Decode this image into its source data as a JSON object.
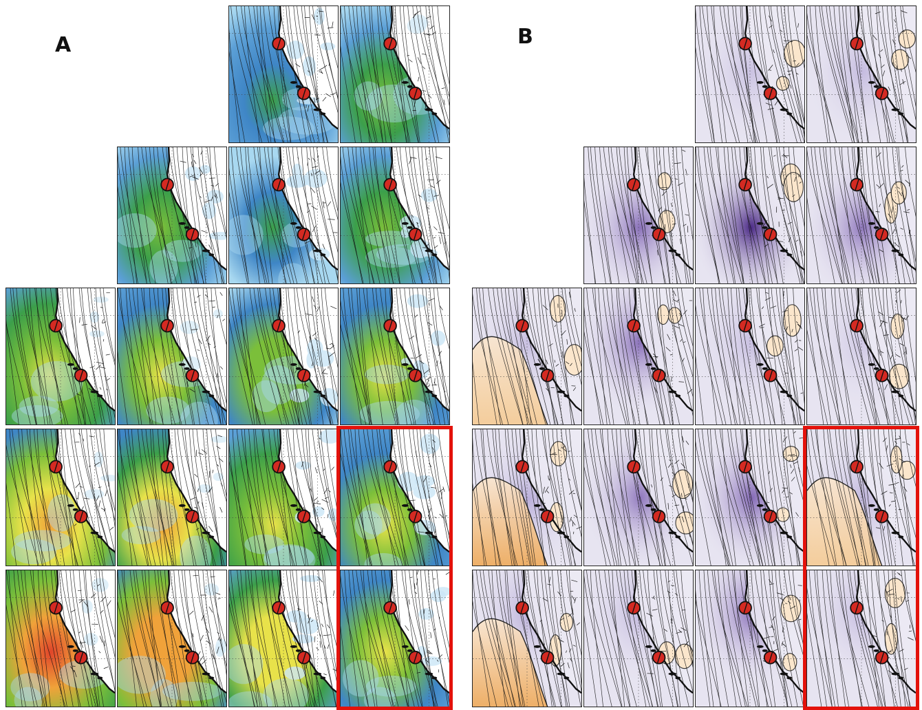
{
  "panels": [
    {
      "label": "A",
      "color_scheme": "wind-speed-blue-green-yellow-red",
      "colors": [
        "#a8d8f0",
        "#5b9fd6",
        "#3f86c6",
        "#3c9f4a",
        "#7bbf3a",
        "#e8e24a",
        "#f0a23a",
        "#e0452a"
      ],
      "rows": [
        {
          "cells": [
            null,
            null,
            {
              "i": 0.35,
              "land": "light-blue"
            },
            {
              "i": 0.45,
              "land": "white"
            }
          ]
        },
        {
          "cells": [
            null,
            {
              "i": 0.38,
              "land": "light-blue"
            },
            {
              "i": 0.28,
              "land": "light-blue"
            },
            {
              "i": 0.4,
              "land": "light-blue"
            }
          ]
        },
        {
          "cells": [
            {
              "i": 0.62,
              "land": "white"
            },
            {
              "i": 0.55,
              "land": "white"
            },
            {
              "i": 0.52,
              "land": "light-blue"
            },
            {
              "i": 0.6,
              "land": "light-blue"
            }
          ]
        },
        {
          "cells": [
            {
              "i": 0.78,
              "land": "white"
            },
            {
              "i": 0.7,
              "land": "white"
            },
            {
              "i": 0.62,
              "land": "light-blue"
            },
            {
              "i": 0.58,
              "land": "light-blue"
            }
          ]
        },
        {
          "cells": [
            {
              "i": 0.85,
              "land": "white"
            },
            {
              "i": 0.8,
              "land": "white"
            },
            {
              "i": 0.66,
              "land": "light-blue"
            },
            {
              "i": 0.55,
              "land": "light-blue"
            }
          ]
        }
      ]
    },
    {
      "label": "B",
      "color_scheme": "anomaly-purple-orange",
      "colors": [
        "#4b2a86",
        "#7a5db0",
        "#b3a6d6",
        "#e7e4f1",
        "#fbe6cc",
        "#f6c98d",
        "#efa650"
      ],
      "rows": [
        {
          "cells": [
            null,
            null,
            {
              "a": -0.25
            },
            {
              "a": -0.35
            }
          ]
        },
        {
          "cells": [
            null,
            {
              "a": -0.55
            },
            {
              "a": -0.75
            },
            {
              "a": -0.5
            }
          ]
        },
        {
          "cells": [
            {
              "a": 0.3
            },
            {
              "a": -0.55
            },
            {
              "a": -0.3
            },
            {
              "a": -0.15
            }
          ]
        },
        {
          "cells": [
            {
              "a": 0.55
            },
            {
              "a": -0.5
            },
            {
              "a": -0.6
            },
            {
              "a": 0.4
            }
          ]
        },
        {
          "cells": [
            {
              "a": 0.55
            },
            {
              "a": -0.4
            },
            {
              "a": -0.55
            },
            {
              "a": -0.35
            }
          ]
        }
      ]
    }
  ],
  "highlight": {
    "column": 3,
    "rows": [
      3,
      4
    ],
    "color": "#e3120b"
  },
  "marker": {
    "color": "#d42a22",
    "stroke": "#111111",
    "count": 2
  }
}
